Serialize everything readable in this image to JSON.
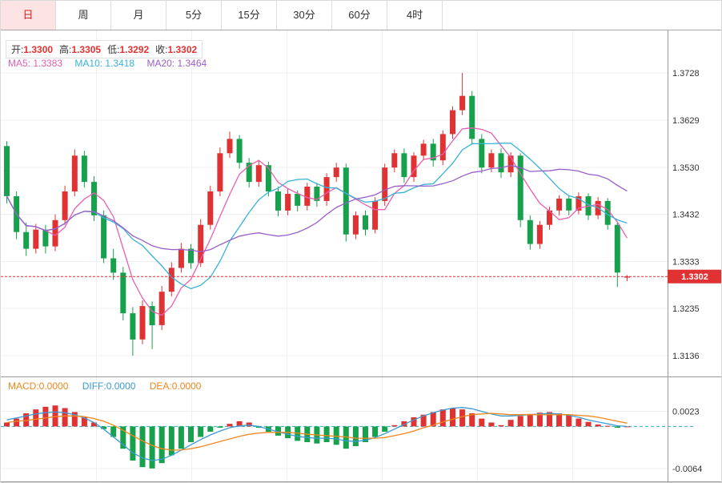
{
  "colors": {
    "up": "#e03232",
    "down": "#18a14c",
    "ma5": "#e75fb0",
    "ma10": "#38b3d8",
    "ma20": "#9a5fc8",
    "diff": "#3b9bd5",
    "dea": "#f0871e",
    "zero_line": "#2bb3c8",
    "grid": "#efefef",
    "border": "#999999",
    "axis_text": "#333333",
    "price_tag_bg": "#e03232",
    "price_tag_text": "#ffffff",
    "tab_active_bg": "#fce4e4",
    "tab_active_text": "#d32222"
  },
  "tabs": {
    "items": [
      "日",
      "周",
      "月",
      "5分",
      "15分",
      "30分",
      "60分",
      "4时"
    ],
    "active_index": 0
  },
  "info": {
    "open_label": "开:",
    "open": "1.3300",
    "high_label": "高:",
    "high": "1.3305",
    "low_label": "低:",
    "low": "1.3292",
    "close_label": "收:",
    "close": "1.3302"
  },
  "ma": {
    "ma5": "MA5: 1.3383",
    "ma10": "MA10: 1.3418",
    "ma20": "MA20: 1.3464"
  },
  "macd_info": {
    "macd": "MACD:0.0000",
    "diff": "DIFF:0.0000",
    "dea": "DEA:0.0000"
  },
  "chart_data": {
    "type": "candlestick+macd",
    "price": {
      "ylim": [
        1.3091,
        1.3817
      ],
      "axis_ticks": [
        1.3728,
        1.3629,
        1.353,
        1.3432,
        1.3333,
        1.3235,
        1.3136
      ],
      "current_price": 1.3302,
      "ma_periods": [
        5,
        10,
        20
      ],
      "candles": [
        [
          1.3575,
          1.3585,
          1.3455,
          1.347
        ],
        [
          1.347,
          1.348,
          1.338,
          1.3395
        ],
        [
          1.3395,
          1.3415,
          1.3345,
          1.336
        ],
        [
          1.336,
          1.3412,
          1.335,
          1.34
        ],
        [
          1.34,
          1.341,
          1.335,
          1.3365
        ],
        [
          1.3365,
          1.3432,
          1.3355,
          1.342
        ],
        [
          1.342,
          1.3492,
          1.341,
          1.348
        ],
        [
          1.348,
          1.3568,
          1.347,
          1.3555
        ],
        [
          1.3555,
          1.3565,
          1.3488,
          1.35
        ],
        [
          1.35,
          1.3512,
          1.3418,
          1.343
        ],
        [
          1.343,
          1.344,
          1.333,
          1.334
        ],
        [
          1.334,
          1.336,
          1.3295,
          1.331
        ],
        [
          1.331,
          1.3322,
          1.321,
          1.3225
        ],
        [
          1.3225,
          1.3238,
          1.3136,
          1.317
        ],
        [
          1.317,
          1.3252,
          1.316,
          1.324
        ],
        [
          1.324,
          1.325,
          1.315,
          1.32
        ],
        [
          1.32,
          1.3282,
          1.319,
          1.327
        ],
        [
          1.327,
          1.3332,
          1.326,
          1.332
        ],
        [
          1.332,
          1.3372,
          1.331,
          1.336
        ],
        [
          1.336,
          1.337,
          1.3318,
          1.333
        ],
        [
          1.333,
          1.3422,
          1.3322,
          1.341
        ],
        [
          1.341,
          1.3492,
          1.34,
          1.348
        ],
        [
          1.348,
          1.3572,
          1.347,
          1.356
        ],
        [
          1.356,
          1.3605,
          1.355,
          1.359
        ],
        [
          1.359,
          1.3598,
          1.3528,
          1.354
        ],
        [
          1.354,
          1.355,
          1.3488,
          1.35
        ],
        [
          1.35,
          1.3545,
          1.349,
          1.3535
        ],
        [
          1.3535,
          1.3542,
          1.347,
          1.348
        ],
        [
          1.348,
          1.349,
          1.3428,
          1.344
        ],
        [
          1.344,
          1.3485,
          1.343,
          1.3475
        ],
        [
          1.3475,
          1.3482,
          1.3438,
          1.345
        ],
        [
          1.345,
          1.3498,
          1.344,
          1.349
        ],
        [
          1.349,
          1.3498,
          1.3448,
          1.346
        ],
        [
          1.346,
          1.3518,
          1.345,
          1.351
        ],
        [
          1.351,
          1.354,
          1.35,
          1.353
        ],
        [
          1.353,
          1.3538,
          1.3375,
          1.339
        ],
        [
          1.339,
          1.3438,
          1.338,
          1.343
        ],
        [
          1.343,
          1.344,
          1.3388,
          1.34
        ],
        [
          1.34,
          1.3468,
          1.3392,
          1.346
        ],
        [
          1.346,
          1.3538,
          1.345,
          1.353
        ],
        [
          1.353,
          1.3568,
          1.352,
          1.356
        ],
        [
          1.356,
          1.357,
          1.3498,
          1.351
        ],
        [
          1.351,
          1.3562,
          1.35,
          1.3555
        ],
        [
          1.3555,
          1.3588,
          1.3545,
          1.358
        ],
        [
          1.358,
          1.359,
          1.3532,
          1.3545
        ],
        [
          1.3545,
          1.3608,
          1.3535,
          1.36
        ],
        [
          1.36,
          1.3658,
          1.359,
          1.365
        ],
        [
          1.365,
          1.3728,
          1.364,
          1.368
        ],
        [
          1.368,
          1.369,
          1.3578,
          1.359
        ],
        [
          1.359,
          1.36,
          1.3518,
          1.353
        ],
        [
          1.353,
          1.3568,
          1.352,
          1.356
        ],
        [
          1.356,
          1.357,
          1.3508,
          1.352
        ],
        [
          1.352,
          1.3562,
          1.351,
          1.3555
        ],
        [
          1.3555,
          1.356,
          1.3405,
          1.342
        ],
        [
          1.342,
          1.343,
          1.3358,
          1.337
        ],
        [
          1.337,
          1.3418,
          1.336,
          1.341
        ],
        [
          1.341,
          1.3448,
          1.34,
          1.344
        ],
        [
          1.344,
          1.3472,
          1.343,
          1.3465
        ],
        [
          1.3465,
          1.3472,
          1.343,
          1.344
        ],
        [
          1.344,
          1.3478,
          1.3432,
          1.347
        ],
        [
          1.347,
          1.3476,
          1.342,
          1.343
        ],
        [
          1.343,
          1.3468,
          1.3422,
          1.346
        ],
        [
          1.346,
          1.3466,
          1.34,
          1.341
        ],
        [
          1.341,
          1.3415,
          1.328,
          1.331
        ],
        [
          1.33,
          1.3305,
          1.3292,
          1.3302
        ]
      ]
    },
    "macd": {
      "ylim": [
        -0.0085,
        0.0075
      ],
      "axis_ticks": [
        0.0023,
        -0.0064
      ],
      "bars": [
        0.0006,
        0.0012,
        0.002,
        0.0026,
        0.003,
        0.0032,
        0.0028,
        0.0022,
        0.0014,
        0.0006,
        -0.0004,
        -0.0016,
        -0.0034,
        -0.0052,
        -0.0062,
        -0.0064,
        -0.0056,
        -0.0044,
        -0.0034,
        -0.0024,
        -0.0016,
        -0.0008,
        -0.0002,
        0.0004,
        0.0008,
        0.0006,
        -0.0002,
        -0.0008,
        -0.0014,
        -0.0018,
        -0.0022,
        -0.0024,
        -0.0026,
        -0.0024,
        -0.0028,
        -0.0034,
        -0.003,
        -0.0024,
        -0.0016,
        -0.0008,
        0.0002,
        0.0008,
        0.0014,
        0.0018,
        0.0022,
        0.0026,
        0.0028,
        0.0026,
        0.002,
        0.0012,
        0.0006,
        0.0002,
        0.001,
        0.0016,
        0.0019,
        0.0021,
        0.0022,
        0.002,
        0.0017,
        0.0012,
        0.0007,
        0.0003,
        0.0001,
        -0.0002,
        0.0
      ],
      "diff": [
        0.001,
        0.0013,
        0.0016,
        0.0019,
        0.0021,
        0.0022,
        0.0021,
        0.0018,
        0.0013,
        0.0006,
        -0.0004,
        -0.0016,
        -0.0028,
        -0.004,
        -0.0048,
        -0.0052,
        -0.005,
        -0.0044,
        -0.0036,
        -0.0028,
        -0.002,
        -0.0013,
        -0.0007,
        -0.0002,
        0.0001,
        0.0002,
        0.0,
        -0.0004,
        -0.0008,
        -0.0012,
        -0.0015,
        -0.0017,
        -0.0018,
        -0.0018,
        -0.0019,
        -0.0022,
        -0.0023,
        -0.0021,
        -0.0017,
        -0.0011,
        -0.0004,
        0.0003,
        0.001,
        0.0016,
        0.0021,
        0.0025,
        0.0028,
        0.0029,
        0.0027,
        0.0023,
        0.0019,
        0.0016,
        0.0016,
        0.0017,
        0.0018,
        0.0019,
        0.002,
        0.0019,
        0.0017,
        0.0014,
        0.001,
        0.0007,
        0.0004,
        0.0001,
        0.0
      ],
      "dea": [
        0.0006,
        0.0008,
        0.0009,
        0.0011,
        0.0013,
        0.0015,
        0.0016,
        0.0016,
        0.0015,
        0.0012,
        0.0008,
        0.0002,
        -0.0006,
        -0.0014,
        -0.0022,
        -0.0029,
        -0.0034,
        -0.0036,
        -0.0036,
        -0.0034,
        -0.0031,
        -0.0027,
        -0.0023,
        -0.0019,
        -0.0015,
        -0.0012,
        -0.001,
        -0.0009,
        -0.0009,
        -0.0009,
        -0.001,
        -0.0012,
        -0.0013,
        -0.0014,
        -0.0015,
        -0.0016,
        -0.0018,
        -0.0018,
        -0.0018,
        -0.0017,
        -0.0014,
        -0.0011,
        -0.0007,
        -0.0002,
        0.0002,
        0.0007,
        0.0011,
        0.0015,
        0.0018,
        0.0019,
        0.002,
        0.0019,
        0.0018,
        0.0018,
        0.0018,
        0.0018,
        0.0018,
        0.0018,
        0.0018,
        0.0017,
        0.0016,
        0.0014,
        0.0011,
        0.0008,
        0.0005
      ]
    }
  }
}
